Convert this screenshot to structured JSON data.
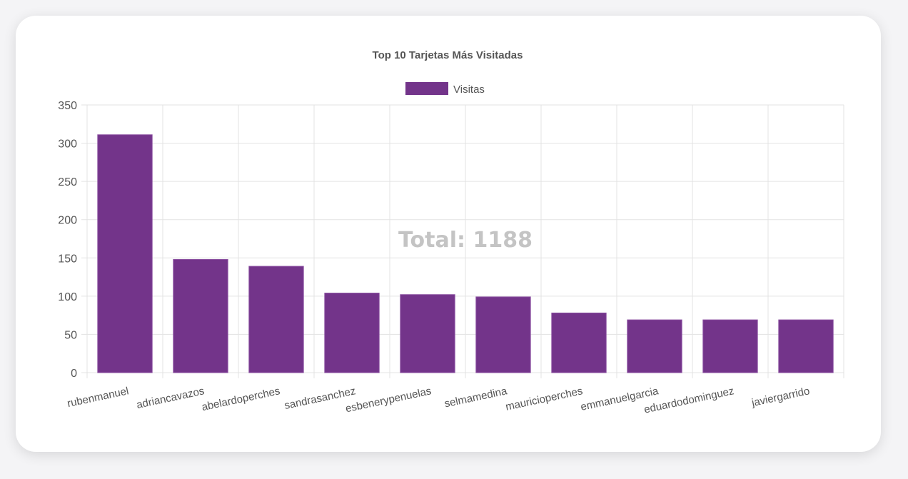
{
  "chart_data": {
    "type": "bar",
    "title": "Top 10 Tarjetas Más Visitadas",
    "categories": [
      "rubenmanuel",
      "adriancavazos",
      "abelardoperches",
      "sandrasanchez",
      "esbenerypenuelas",
      "selmamedina",
      "mauricioperches",
      "emmanuelgarcia",
      "eduardodominguez",
      "javiergarrido"
    ],
    "series": [
      {
        "name": "Visitas",
        "values": [
          311,
          148,
          139,
          104,
          102,
          99,
          78,
          69,
          69,
          69
        ],
        "color": "#73348a"
      }
    ],
    "ylim": [
      0,
      350
    ],
    "yticks": [
      "0",
      "50",
      "100",
      "150",
      "200",
      "250",
      "300",
      "350"
    ],
    "grid": true,
    "legend_position": "top",
    "center_label": "Total: 1188"
  },
  "colors": {
    "bar": "#73348a",
    "bar_border": "#8a4ea0",
    "grid": "#e3e3e3",
    "text": "#555555"
  }
}
